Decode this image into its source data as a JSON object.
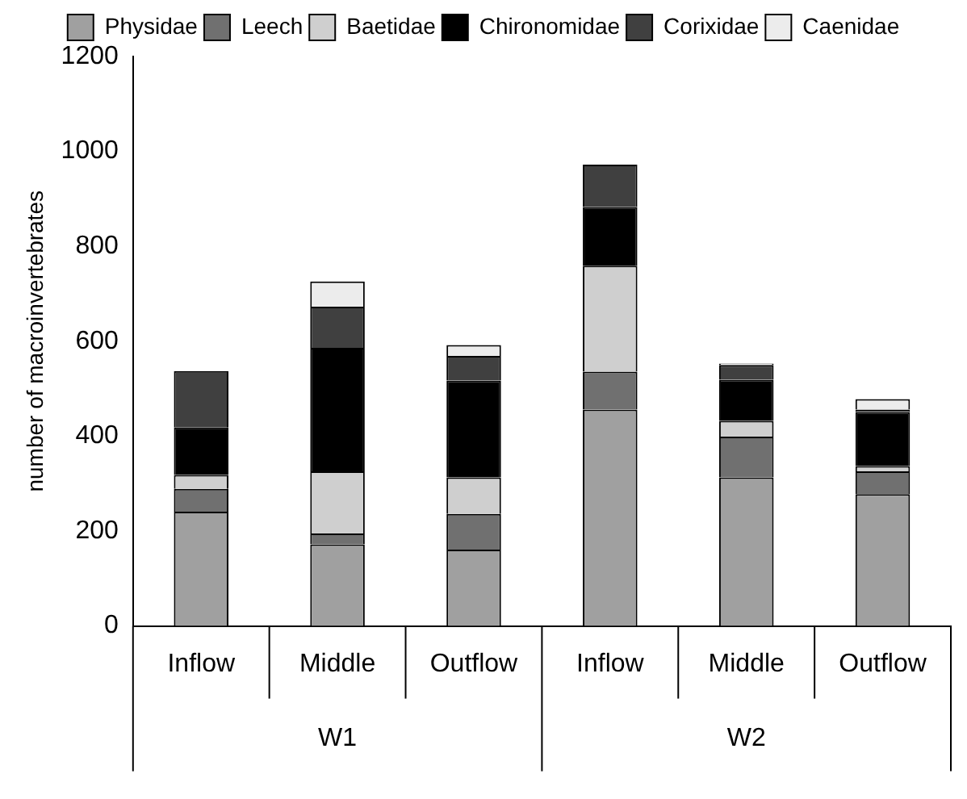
{
  "chart_data": {
    "type": "bar",
    "stacked": true,
    "ylabel": "number of macroinvertebrates",
    "categories": [
      "Inflow",
      "Middle",
      "Outflow",
      "Inflow",
      "Middle",
      "Outflow"
    ],
    "annotations": [
      "W1",
      "W2"
    ],
    "ylim": [
      0,
      1200
    ],
    "yticks": [
      0,
      200,
      400,
      600,
      800,
      1000,
      1200
    ],
    "grid": false,
    "legend": "top",
    "series": [
      {
        "name": "Physidae",
        "color": "#a0a0a0",
        "values": [
          241,
          172,
          161,
          456,
          313,
          278
        ]
      },
      {
        "name": "Leech",
        "color": "#707070",
        "values": [
          48,
          23,
          75,
          80,
          86,
          48
        ]
      },
      {
        "name": "Baetidae",
        "color": "#cfcfcf",
        "values": [
          29,
          131,
          77,
          223,
          33,
          11
        ]
      },
      {
        "name": "Chironomidae",
        "color": "#000000",
        "values": [
          100,
          260,
          204,
          124,
          87,
          114
        ]
      },
      {
        "name": "Corixidae",
        "color": "#404040",
        "values": [
          119,
          87,
          52,
          89,
          31,
          5
        ]
      },
      {
        "name": "Caenidae",
        "color": "#ececec",
        "values": [
          0,
          53,
          23,
          0,
          3,
          22
        ]
      }
    ]
  }
}
